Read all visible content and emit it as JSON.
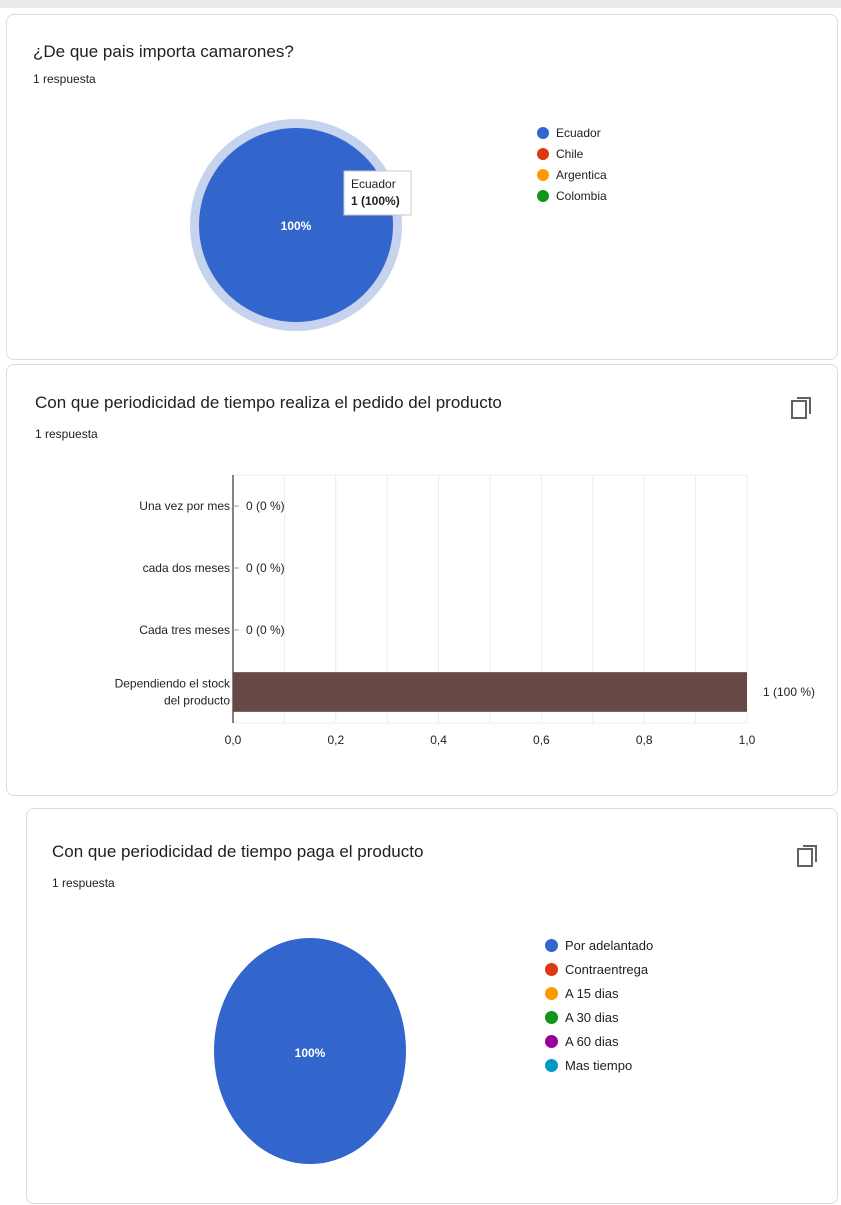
{
  "cards": [
    {
      "title": "¿De que pais importa camarones?",
      "responses": "1 respuesta",
      "tooltip": {
        "label": "Ecuador",
        "value": "1 (100%)"
      }
    },
    {
      "title": "Con que periodicidad de tiempo realiza el pedido del producto",
      "responses": "1 respuesta",
      "copy_icon": "copy-icon"
    },
    {
      "title": "Con que periodicidad de tiempo paga el producto",
      "responses": "1 respuesta",
      "copy_icon": "copy-icon"
    }
  ],
  "chart_data": [
    {
      "type": "pie",
      "categories": [
        "Ecuador",
        "Chile",
        "Argentica",
        "Colombia"
      ],
      "values": [
        1,
        0,
        0,
        0
      ],
      "slice_labels": [
        "100%"
      ],
      "colors": [
        "#3366cc",
        "#dc3912",
        "#ff9900",
        "#109618"
      ],
      "legend_position": "right"
    },
    {
      "type": "bar",
      "orientation": "horizontal",
      "categories": [
        "Una vez por mes",
        "cada dos meses",
        "Cada tres meses",
        "Dependiendo el stock del producto"
      ],
      "values": [
        0,
        0,
        0,
        1
      ],
      "data_labels": [
        "0 (0 %)",
        "0 (0 %)",
        "0 (0 %)",
        "1 (100 %)"
      ],
      "xlim": [
        0,
        1
      ],
      "xticks": [
        "0,0",
        "0,2",
        "0,4",
        "0,6",
        "0,8",
        "1,0"
      ],
      "grid": true,
      "bar_color": "#674846"
    },
    {
      "type": "pie",
      "categories": [
        "Por adelantado",
        "Contraentrega",
        "A 15 dias",
        "A 30 dias",
        "A 60 dias",
        "Mas tiempo"
      ],
      "values": [
        1,
        0,
        0,
        0,
        0,
        0
      ],
      "slice_labels": [
        "100%"
      ],
      "colors": [
        "#3366cc",
        "#dc3912",
        "#ff9900",
        "#109618",
        "#990099",
        "#0099c6"
      ],
      "legend_position": "right"
    }
  ]
}
